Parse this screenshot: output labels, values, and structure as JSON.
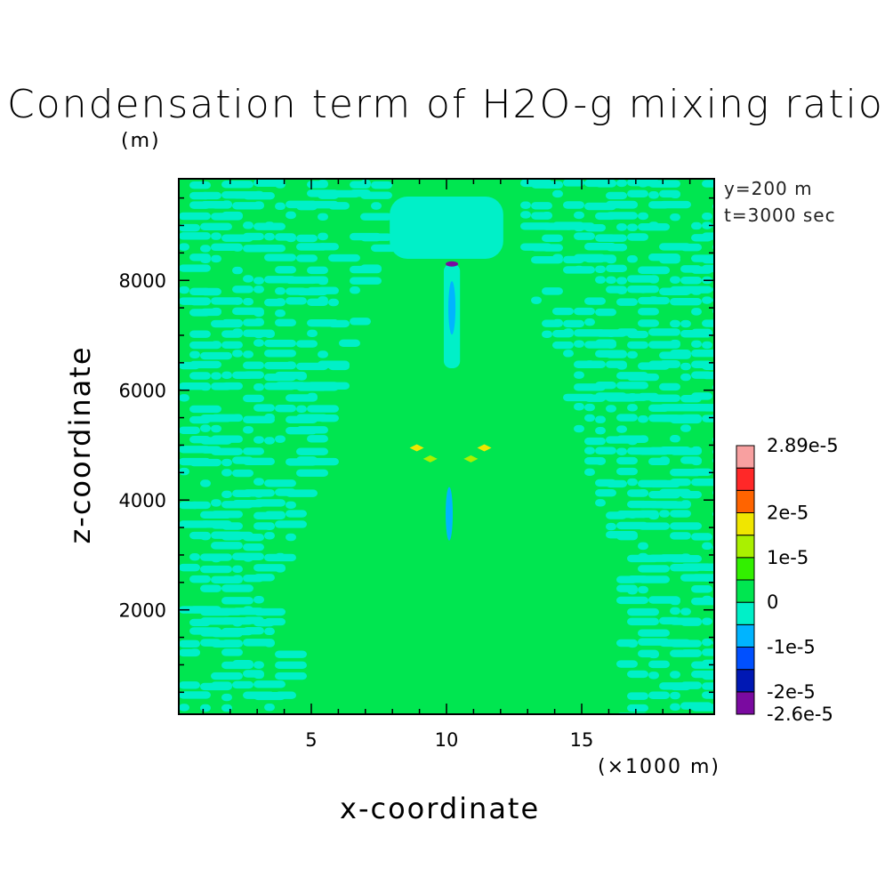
{
  "chart_data": {
    "type": "heatmap",
    "title": "Condensation term of H2O-g mixing ratio",
    "ylabel": "z-coordinate",
    "yunit": "(m)",
    "xlabel": "x-coordinate",
    "xunit": "(×1000 m)",
    "annotations": [
      "y=200 m",
      "t=3000 sec"
    ],
    "xlim": [
      0.1,
      19.9
    ],
    "ylim": [
      100,
      9850
    ],
    "x_ticks": [
      5,
      10,
      15
    ],
    "y_ticks": [
      2000,
      4000,
      6000,
      8000
    ],
    "x_tick_labels": [
      "5",
      "10",
      "15"
    ],
    "y_tick_labels": [
      "2000",
      "4000",
      "6000",
      "8000"
    ],
    "colorbar": {
      "levels": [
        -2.6e-05,
        -2e-05,
        -1.5e-05,
        -1e-05,
        -5e-06,
        0,
        5e-06,
        1e-05,
        1.5e-05,
        2e-05,
        2.5e-05,
        2.89e-05
      ],
      "colors": [
        "#7a0aa0",
        "#0018b4",
        "#0050ff",
        "#00b4ff",
        "#00f0c8",
        "#00e650",
        "#32f000",
        "#aaf000",
        "#f0e600",
        "#ff6400",
        "#ff2828",
        "#f8a0a0"
      ],
      "labels": [
        "-2.6e-5",
        "-2e-5",
        "-1e-5",
        "0",
        "1e-5",
        "2e-5",
        "2.89e-5"
      ]
    },
    "features": [
      {
        "x": 10.2,
        "z": 8300,
        "value": -2.6e-05
      },
      {
        "x": 10.2,
        "z": 7500,
        "value": -1e-05
      },
      {
        "x": 8.9,
        "z": 4950,
        "value": 1.5e-05
      },
      {
        "x": 11.4,
        "z": 4950,
        "value": 1.5e-05
      },
      {
        "x": 9.4,
        "z": 4750,
        "value": 1e-05
      },
      {
        "x": 10.9,
        "z": 4750,
        "value": 1e-05
      },
      {
        "x": 10.1,
        "z": 3750,
        "value": -8e-06
      }
    ],
    "field_description_values": {
      "background": 3e-06,
      "noise_band": -3e-06
    }
  }
}
